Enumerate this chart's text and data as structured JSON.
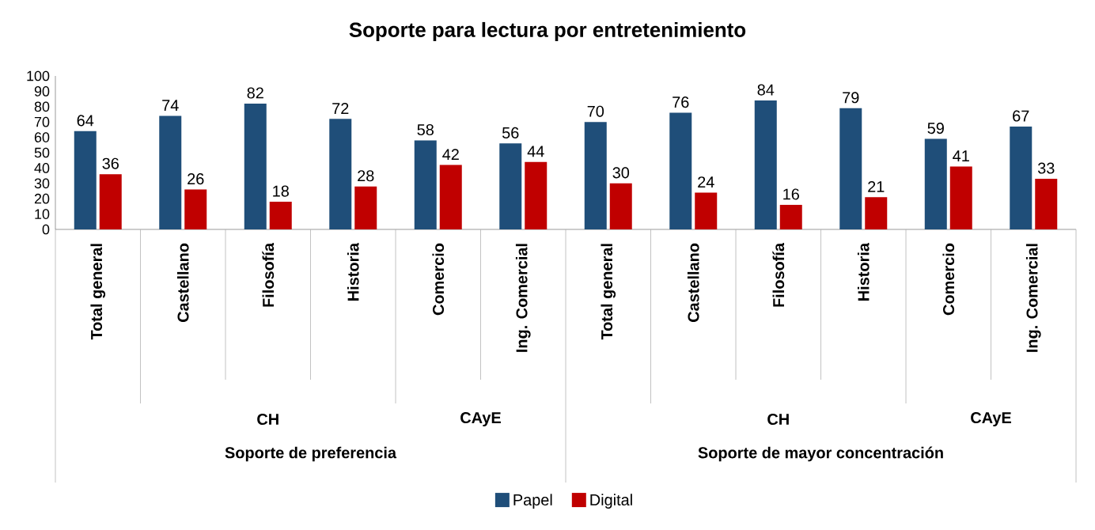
{
  "chart_data": {
    "type": "bar",
    "title": "Soporte para lectura por entretenimiento",
    "categories": [
      "Total general",
      "Castellano",
      "Filosofía",
      "Historia",
      "Comercio",
      "Ing. Comercial",
      "Total general",
      "Castellano",
      "Filosofía",
      "Historia",
      "Comercio",
      "Ing. Comercial"
    ],
    "series": [
      {
        "name": "Papel",
        "color": "#1f4e79",
        "values": [
          64,
          74,
          82,
          72,
          58,
          56,
          70,
          76,
          84,
          79,
          59,
          67
        ]
      },
      {
        "name": "Digital",
        "color": "#c00000",
        "values": [
          36,
          26,
          18,
          28,
          42,
          44,
          30,
          24,
          16,
          21,
          41,
          33
        ]
      }
    ],
    "ylim": [
      0,
      100
    ],
    "yticks": [
      0,
      10,
      20,
      30,
      40,
      50,
      60,
      70,
      80,
      90,
      100
    ],
    "annotations": [
      "CH",
      "CAyE",
      "Soporte de preferencia",
      "CH",
      "CAyE",
      "Soporte de mayor concentración"
    ],
    "data_labels": true,
    "legend": "bottom",
    "grid": false
  }
}
